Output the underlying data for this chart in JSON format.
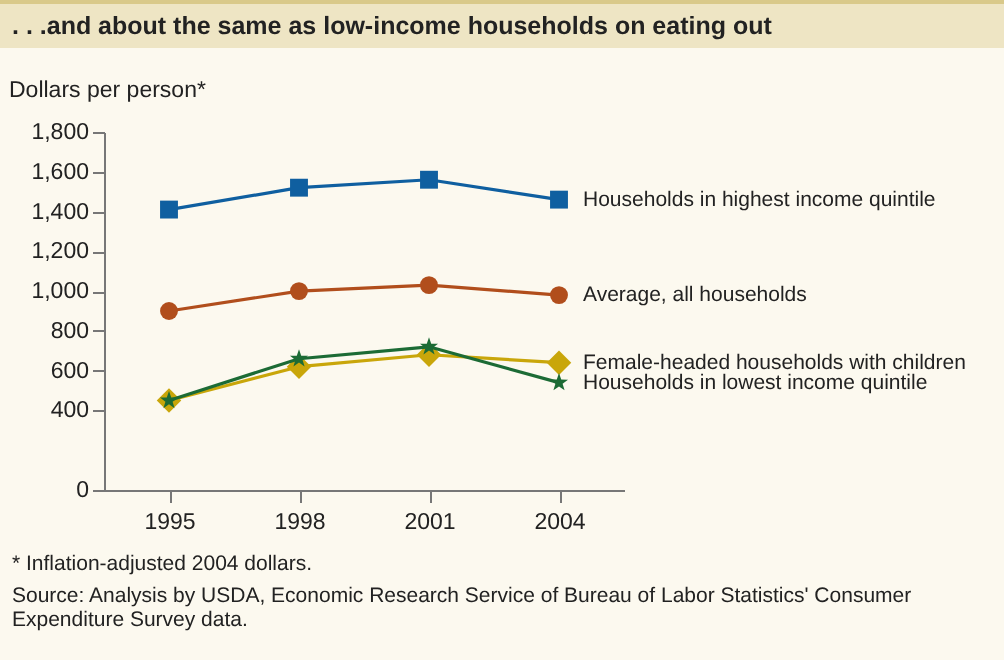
{
  "chart_data": {
    "type": "line",
    "title": ". . .and about the same as low-income households on eating out",
    "ylabel": "Dollars per person*",
    "x": [
      1995,
      1998,
      2001,
      2004
    ],
    "xlim": [
      1993.5,
      2005.5
    ],
    "xticks": [
      1995,
      1998,
      2001,
      2004
    ],
    "ylim": [
      0,
      1800
    ],
    "yticks": [
      0,
      400,
      600,
      800,
      {
        "value": 1000,
        "label": "1,000"
      },
      {
        "value": 1200,
        "label": "1,200"
      },
      {
        "value": 1400,
        "label": "1,400"
      },
      {
        "value": 1600,
        "label": "1,600"
      },
      {
        "value": 1800,
        "label": "1,800"
      }
    ],
    "grid": false,
    "line_style": "solid",
    "series": [
      {
        "name": "Households in highest income quintile",
        "color": "#0f5fa0",
        "marker": "square",
        "values": [
          1410,
          1520,
          1560,
          1460
        ]
      },
      {
        "name": "Average, all households",
        "color": "#b14e1c",
        "marker": "circle",
        "values": [
          900,
          1000,
          1030,
          980
        ]
      },
      {
        "name": "Female-headed households with children",
        "color": "#c9a60a",
        "marker": "diamond",
        "values": [
          450,
          620,
          680,
          640
        ]
      },
      {
        "name": "Households in lowest income quintile",
        "color": "#1c6b35",
        "marker": "star",
        "values": [
          450,
          660,
          720,
          540
        ]
      }
    ],
    "annotations": [
      "* Inflation-adjusted 2004 dollars.",
      "Source: Analysis by USDA, Economic Research Service of Bureau of Labor Statistics' Consumer Expenditure Survey data."
    ]
  }
}
